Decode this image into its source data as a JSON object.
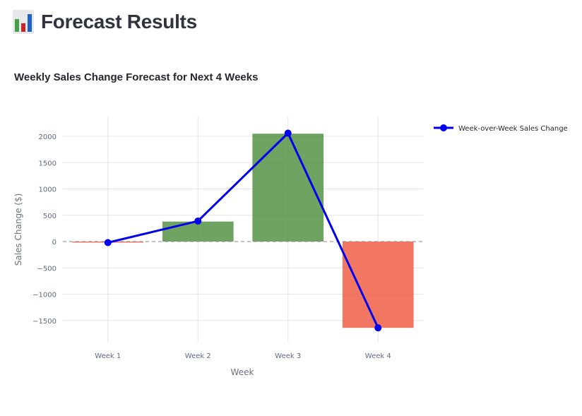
{
  "page": {
    "title": "Forecast Results",
    "icon": "bar-chart-icon"
  },
  "chart_data": {
    "type": "bar",
    "title": "Weekly Sales Change Forecast for Next 4 Weeks",
    "xlabel": "Week",
    "ylabel": "Sales Change ($)",
    "categories": [
      "Week 1",
      "Week 2",
      "Week 3",
      "Week 4"
    ],
    "ylim": [
      -1850,
      2350
    ],
    "yticks": [
      2000,
      1500,
      1000,
      500,
      0,
      -500,
      -1000,
      -1500
    ],
    "ytick_labels": [
      "2000",
      "1500",
      "1000",
      "500",
      "0",
      "−500",
      "−1000",
      "−1500"
    ],
    "series": [
      {
        "name": "",
        "kind": "bar",
        "values": [
          -20,
          380,
          2050,
          -1640
        ],
        "colors": [
          "#ef553b",
          "#4a8c3a",
          "#4a8c3a",
          "#ef553b"
        ]
      },
      {
        "name": "Week-over-Week Sales Change",
        "kind": "line",
        "values": [
          -20,
          390,
          2060,
          -1640
        ],
        "color": "#0000ee"
      }
    ],
    "zero_line": "dashed",
    "grid": true,
    "legend_position": "top-right"
  }
}
